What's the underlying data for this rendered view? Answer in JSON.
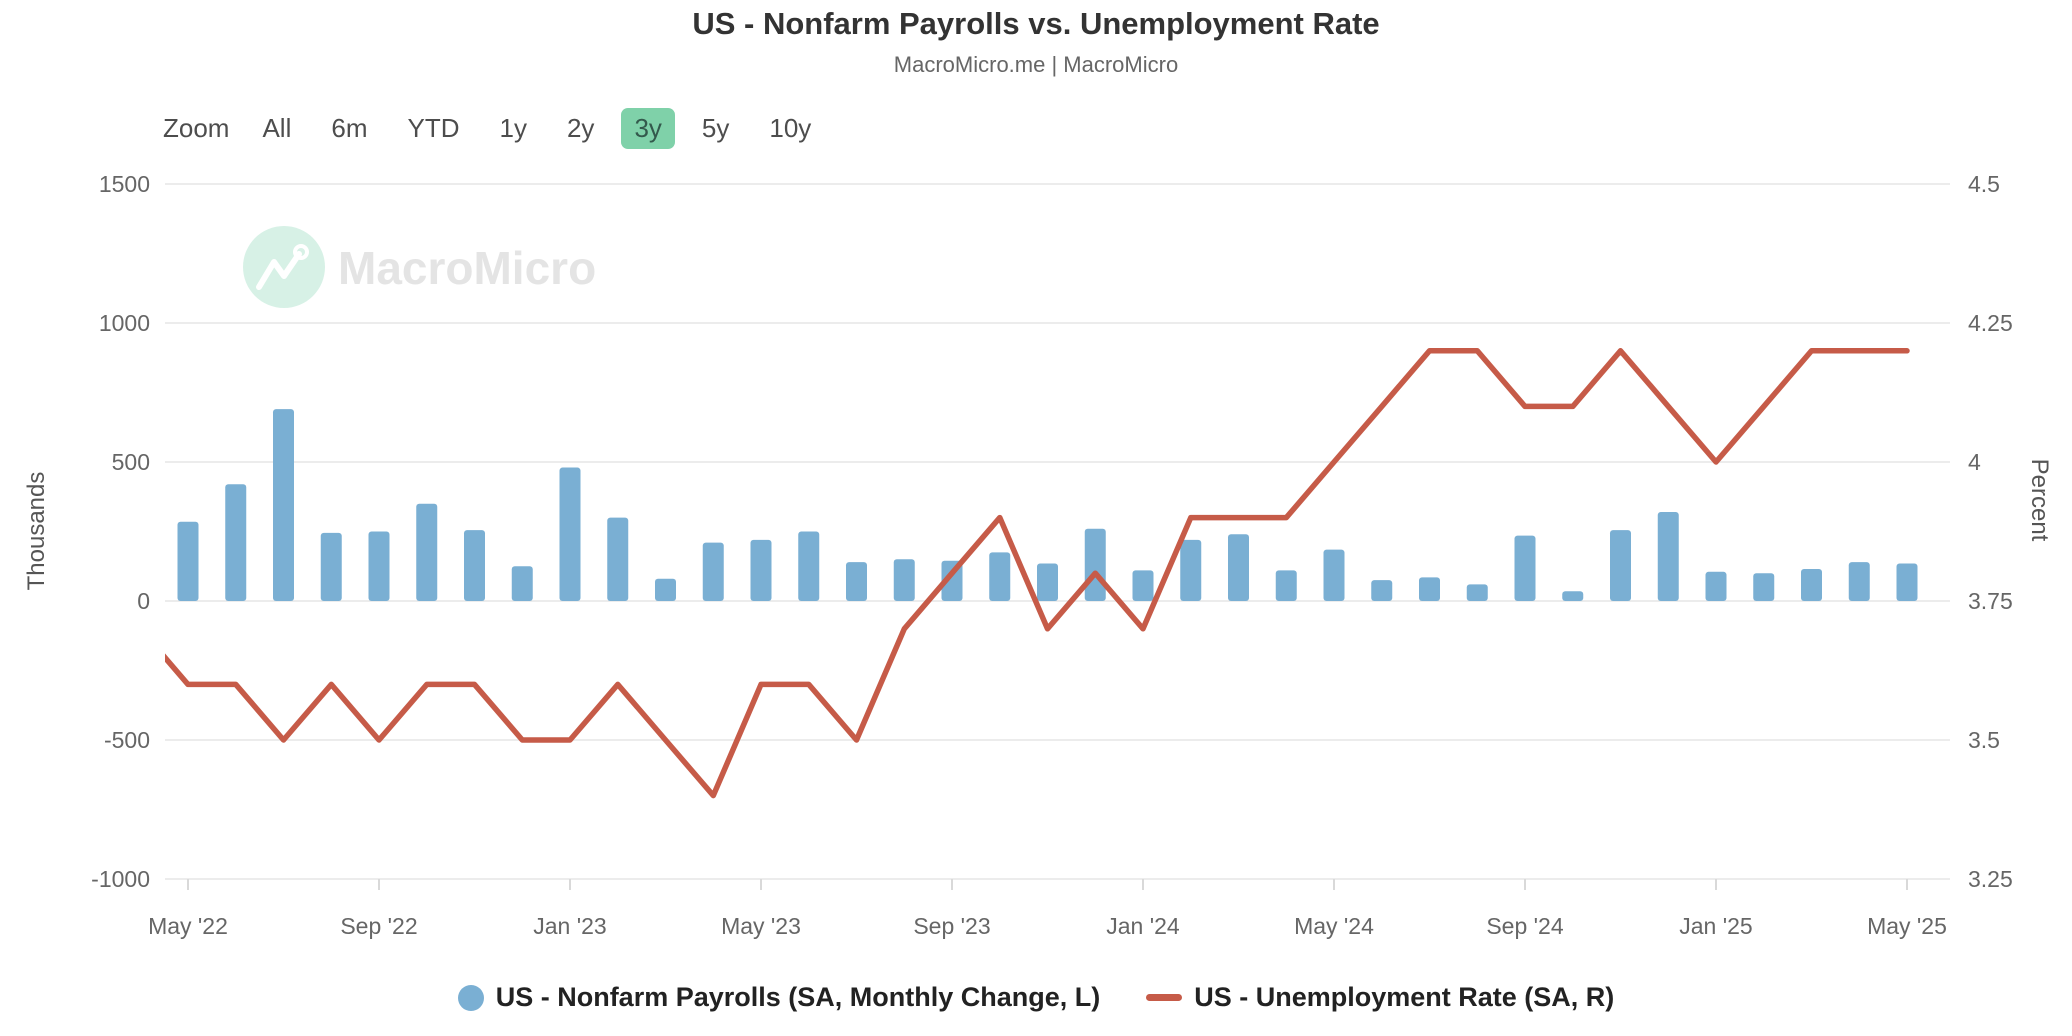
{
  "title": "US - Nonfarm Payrolls vs. Unemployment Rate",
  "subtitle": "MacroMicro.me | MacroMicro",
  "watermark": {
    "brand": "MacroMicro",
    "logo": "macromicro-pulse-logo"
  },
  "zoom_toolbar": {
    "label": "Zoom",
    "options": [
      "All",
      "6m",
      "YTD",
      "1y",
      "2y",
      "3y",
      "5y",
      "10y"
    ],
    "selected": "3y"
  },
  "colors": {
    "bar": "#7aafd3",
    "line": "#c65b48",
    "grid": "#e6e6e6",
    "axis_text": "#666666",
    "axis_title": "#555555",
    "tick_mark": "#d9d9d9",
    "selected_zoom_bg": "#7fd1a9",
    "selected_zoom_text": "#33594c",
    "watermark_text": "#e4e4e4",
    "watermark_circle": "#d7f1e6",
    "legend_text": "#222222"
  },
  "chart_data": {
    "type": "combo-bar-line",
    "categories": [
      "May '22",
      "Jun '22",
      "Jul '22",
      "Aug '22",
      "Sep '22",
      "Oct '22",
      "Nov '22",
      "Dec '22",
      "Jan '23",
      "Feb '23",
      "Mar '23",
      "Apr '23",
      "May '23",
      "Jun '23",
      "Jul '23",
      "Aug '23",
      "Sep '23",
      "Oct '23",
      "Nov '23",
      "Dec '23",
      "Jan '24",
      "Feb '24",
      "Mar '24",
      "Apr '24",
      "May '24",
      "Jun '24",
      "Jul '24",
      "Aug '24",
      "Sep '24",
      "Oct '24",
      "Nov '24",
      "Dec '24",
      "Jan '25",
      "Feb '25",
      "Mar '25",
      "Apr '25",
      "May '25"
    ],
    "x_tick_labels": [
      "May '22",
      "Sep '22",
      "Jan '23",
      "May '23",
      "Sep '23",
      "Jan '24",
      "May '24",
      "Sep '24",
      "Jan '25",
      "May '25"
    ],
    "series": [
      {
        "name": "US - Nonfarm Payrolls (SA, Monthly Change, L)",
        "type": "bar",
        "axis": "left",
        "color": "#7aafd3",
        "values": [
          285,
          420,
          690,
          245,
          250,
          350,
          255,
          125,
          480,
          300,
          80,
          210,
          220,
          250,
          140,
          150,
          145,
          175,
          135,
          260,
          110,
          220,
          240,
          110,
          185,
          75,
          85,
          60,
          235,
          35,
          255,
          320,
          105,
          100,
          115,
          140,
          135
        ]
      },
      {
        "name": "US - Unemployment Rate (SA, R)",
        "type": "line",
        "axis": "right",
        "color": "#c65b48",
        "values": [
          3.6,
          3.6,
          3.5,
          3.6,
          3.5,
          3.6,
          3.6,
          3.5,
          3.5,
          3.6,
          3.5,
          3.4,
          3.6,
          3.6,
          3.5,
          3.7,
          3.8,
          3.9,
          3.7,
          3.8,
          3.7,
          3.9,
          3.9,
          3.9,
          4.0,
          4.1,
          4.2,
          4.2,
          4.1,
          4.1,
          4.2,
          4.1,
          4.0,
          4.1,
          4.2,
          4.2,
          4.2
        ],
        "pre_start_value": 3.7
      }
    ],
    "left_axis": {
      "title": "Thousands",
      "min": -1000,
      "max": 1500,
      "ticks": [
        1500,
        1000,
        500,
        0,
        -500,
        -1000
      ],
      "tick_labels": [
        "1500",
        "1000",
        "500",
        "0",
        "-500",
        "-1000"
      ]
    },
    "right_axis": {
      "title": "Percent",
      "min": 3.25,
      "max": 4.5,
      "ticks": [
        4.5,
        4.25,
        4.0,
        3.75,
        3.5,
        3.25
      ],
      "tick_labels": [
        "4.5",
        "4.25",
        "4",
        "3.75",
        "3.5",
        "3.25"
      ]
    },
    "grid": true,
    "legend_position": "bottom"
  },
  "legend": [
    {
      "label": "US - Nonfarm Payrolls (SA, Monthly Change, L)",
      "marker": "circle",
      "color": "#7aafd3"
    },
    {
      "label": "US - Unemployment Rate (SA, R)",
      "marker": "dash",
      "color": "#c65b48"
    }
  ]
}
